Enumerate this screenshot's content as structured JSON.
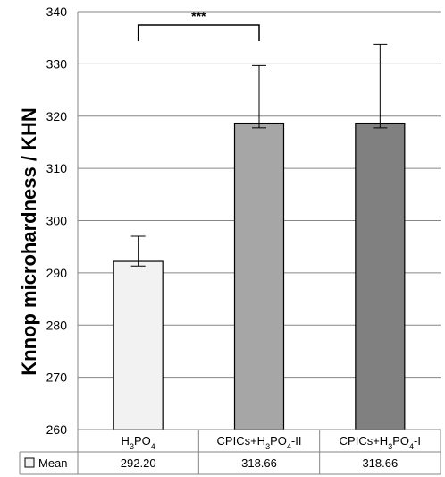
{
  "chart_data": {
    "type": "bar",
    "categories": [
      "H3PO4",
      "CPICs+H3PO4-II",
      "CPICs+H3PO4-I"
    ],
    "series": [
      {
        "name": "Mean",
        "values": [
          292.2,
          318.66,
          318.66
        ],
        "error_plus": [
          4.8,
          11.0,
          15.1
        ],
        "error_minus": [
          0.9,
          0.9,
          0.9
        ],
        "colors": [
          "#f2f2f2",
          "#a6a6a6",
          "#808080"
        ]
      }
    ],
    "value_labels": [
      "292.20",
      "318.66",
      "318.66"
    ],
    "ylabel": "Knnop microhardness / KHN",
    "ylim": [
      260,
      340
    ],
    "yticks": [
      260,
      270,
      280,
      290,
      300,
      310,
      320,
      330,
      340
    ],
    "grid": true,
    "legend": "data-table",
    "significance": {
      "label": "***",
      "from": 0,
      "to": 1
    }
  }
}
